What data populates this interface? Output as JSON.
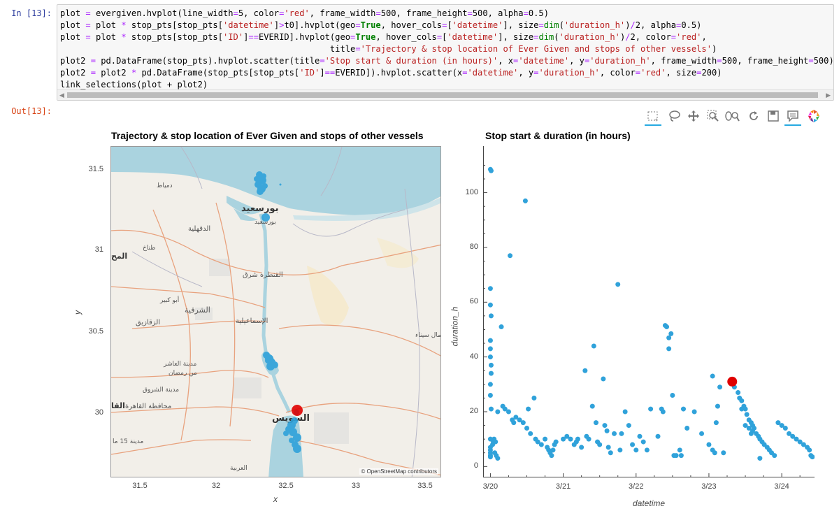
{
  "cell": {
    "in_prompt": "In [13]:",
    "out_prompt": "Out[13]:",
    "code_lines": [
      "plot = evergiven.hvplot(line_width=5, color='red', frame_width=500, frame_height=500, alpha=0.5)",
      "plot = plot * stop_pts[stop_pts['datetime']>t0].hvplot(geo=True, hover_cols=['datetime'], size=dim('duration_h')/2, alpha=0.5)",
      "plot = plot * stop_pts[stop_pts['ID']==EVERID].hvplot(geo=True, hover_cols=['datetime'], size=dim('duration_h')/2, color='red',",
      "                                                     title='Trajectory & stop location of Ever Given and stops of other vessels')",
      "plot2 = pd.DataFrame(stop_pts).hvplot.scatter(title='Stop start & duration (in hours)', x='datetime', y='duration_h', frame_width=500, frame_height=500)",
      "plot2 = plot2 * pd.DataFrame(stop_pts[stop_pts['ID']==EVERID]).hvplot.scatter(x='datetime', y='duration_h', color='red', size=200)",
      "link_selections(plot + plot2)"
    ]
  },
  "toolbar": {
    "icons": [
      "box-select-icon",
      "lasso-select-icon",
      "pan-icon",
      "box-zoom-icon",
      "wheel-zoom-icon",
      "reset-icon",
      "save-icon",
      "hover-icon",
      "bokeh-logo-icon"
    ]
  },
  "map_plot": {
    "title": "Trajectory & stop location of Ever Given and stops of other vessels",
    "xlabel": "x",
    "ylabel": "y",
    "x_ticks": [
      "31.5",
      "32",
      "32.5",
      "33",
      "33.5"
    ],
    "y_ticks": [
      "31.5",
      "31",
      "30.5",
      "30"
    ],
    "attribution": "© OpenStreetMap contributors",
    "place_labels": [
      "بورسعيد",
      "بورسعيد",
      "دمياط",
      "الدقهلية",
      "طناخ",
      "المح",
      "القنطرة شرق",
      "أبو كبير",
      "الشرقية",
      "الزقازيق",
      "الإسماعيلية",
      "شمال سيناء",
      "مدينة العاشر",
      "من رمضان",
      "مدينة الشروق",
      "محافظة القاهرة",
      "القا",
      "السويس",
      "مدينة 15 ما",
      "العربية"
    ],
    "colors": {
      "water": "#aad3df",
      "land": "#f2efe9",
      "stops": "#30a2da",
      "ever_given": "#e00000"
    }
  },
  "chart_data": {
    "type": "scatter",
    "title": "Stop start & duration (in hours)",
    "xlabel": "datetime",
    "ylabel": "duration_h",
    "x_ticks": [
      "3/20",
      "3/21",
      "3/22",
      "3/23",
      "3/24"
    ],
    "y_ticks": [
      "0",
      "20",
      "40",
      "60",
      "80",
      "100"
    ],
    "xlim": [
      -0.1,
      4.45
    ],
    "ylim": [
      -4,
      117
    ],
    "series": [
      {
        "color": "#30a2da",
        "points": [
          [
            0.0,
            108.5
          ],
          [
            0.01,
            108
          ],
          [
            0.0,
            65
          ],
          [
            0.0,
            59
          ],
          [
            0.01,
            55
          ],
          [
            0.0,
            46
          ],
          [
            0.0,
            43
          ],
          [
            0.0,
            40
          ],
          [
            0.01,
            37
          ],
          [
            0.01,
            34
          ],
          [
            0.0,
            30
          ],
          [
            0.0,
            26
          ],
          [
            0.01,
            21
          ],
          [
            0.0,
            10
          ],
          [
            0.0,
            7
          ],
          [
            0.0,
            6
          ],
          [
            0.0,
            5
          ],
          [
            0.0,
            4
          ],
          [
            0.0,
            3.5
          ],
          [
            0.03,
            8
          ],
          [
            0.04,
            9
          ],
          [
            0.05,
            10
          ],
          [
            0.07,
            9
          ],
          [
            0.06,
            5
          ],
          [
            0.08,
            4
          ],
          [
            0.1,
            3
          ],
          [
            0.1,
            20
          ],
          [
            0.15,
            51
          ],
          [
            0.17,
            22
          ],
          [
            0.2,
            21
          ],
          [
            0.25,
            20
          ],
          [
            0.27,
            77
          ],
          [
            0.3,
            17
          ],
          [
            0.32,
            16
          ],
          [
            0.35,
            18
          ],
          [
            0.4,
            17
          ],
          [
            0.45,
            16
          ],
          [
            0.48,
            97
          ],
          [
            0.5,
            14
          ],
          [
            0.52,
            21
          ],
          [
            0.55,
            12
          ],
          [
            0.6,
            25
          ],
          [
            0.62,
            10
          ],
          [
            0.65,
            9
          ],
          [
            0.7,
            8
          ],
          [
            0.75,
            10
          ],
          [
            0.78,
            7
          ],
          [
            0.8,
            6
          ],
          [
            0.82,
            5
          ],
          [
            0.84,
            4
          ],
          [
            0.86,
            6
          ],
          [
            0.88,
            8
          ],
          [
            0.9,
            9
          ],
          [
            1.0,
            10
          ],
          [
            1.05,
            11
          ],
          [
            1.1,
            10
          ],
          [
            1.15,
            8
          ],
          [
            1.18,
            9
          ],
          [
            1.2,
            10
          ],
          [
            1.25,
            7
          ],
          [
            1.3,
            35
          ],
          [
            1.32,
            11
          ],
          [
            1.35,
            10
          ],
          [
            1.4,
            22
          ],
          [
            1.42,
            44
          ],
          [
            1.45,
            16
          ],
          [
            1.47,
            9
          ],
          [
            1.5,
            8
          ],
          [
            1.55,
            32
          ],
          [
            1.57,
            15
          ],
          [
            1.6,
            13
          ],
          [
            1.62,
            7
          ],
          [
            1.65,
            5
          ],
          [
            1.7,
            12
          ],
          [
            1.75,
            66.5
          ],
          [
            1.78,
            6
          ],
          [
            1.8,
            12
          ],
          [
            1.85,
            20
          ],
          [
            1.9,
            15
          ],
          [
            1.95,
            8
          ],
          [
            2.0,
            6
          ],
          [
            2.05,
            11
          ],
          [
            2.1,
            9
          ],
          [
            2.15,
            6
          ],
          [
            2.2,
            21
          ],
          [
            2.3,
            11
          ],
          [
            2.35,
            21
          ],
          [
            2.37,
            20
          ],
          [
            2.4,
            51.5
          ],
          [
            2.42,
            51
          ],
          [
            2.45,
            47
          ],
          [
            2.45,
            43
          ],
          [
            2.48,
            48.5
          ],
          [
            2.5,
            26
          ],
          [
            2.52,
            4
          ],
          [
            2.55,
            4
          ],
          [
            2.6,
            6
          ],
          [
            2.62,
            4
          ],
          [
            2.65,
            21
          ],
          [
            2.7,
            14
          ],
          [
            2.8,
            20
          ],
          [
            2.9,
            12
          ],
          [
            3.0,
            8
          ],
          [
            3.05,
            6
          ],
          [
            3.08,
            5
          ],
          [
            3.05,
            33
          ],
          [
            3.1,
            16
          ],
          [
            3.12,
            22
          ],
          [
            3.15,
            29
          ],
          [
            3.2,
            5
          ],
          [
            3.3,
            31
          ],
          [
            3.35,
            29
          ],
          [
            3.4,
            27
          ],
          [
            3.42,
            25
          ],
          [
            3.45,
            24
          ],
          [
            3.48,
            22
          ],
          [
            3.5,
            21
          ],
          [
            3.52,
            19
          ],
          [
            3.55,
            17
          ],
          [
            3.58,
            16
          ],
          [
            3.6,
            15
          ],
          [
            3.62,
            14
          ],
          [
            3.65,
            12
          ],
          [
            3.68,
            11
          ],
          [
            3.7,
            10
          ],
          [
            3.73,
            9
          ],
          [
            3.76,
            8
          ],
          [
            3.8,
            7
          ],
          [
            3.83,
            6
          ],
          [
            3.86,
            5
          ],
          [
            3.9,
            4
          ],
          [
            3.95,
            16
          ],
          [
            4.0,
            15
          ],
          [
            4.05,
            14
          ],
          [
            4.1,
            12
          ],
          [
            4.15,
            11
          ],
          [
            4.2,
            10
          ],
          [
            4.25,
            9
          ],
          [
            4.3,
            8
          ],
          [
            4.35,
            7
          ],
          [
            4.38,
            6
          ],
          [
            4.4,
            4
          ],
          [
            4.42,
            3.5
          ],
          [
            3.55,
            14
          ],
          [
            3.58,
            12
          ],
          [
            3.45,
            21
          ],
          [
            3.5,
            15
          ],
          [
            3.6,
            13
          ],
          [
            3.7,
            3
          ]
        ]
      },
      {
        "color": "#e00000",
        "points": [
          [
            3.32,
            31
          ]
        ]
      }
    ]
  }
}
